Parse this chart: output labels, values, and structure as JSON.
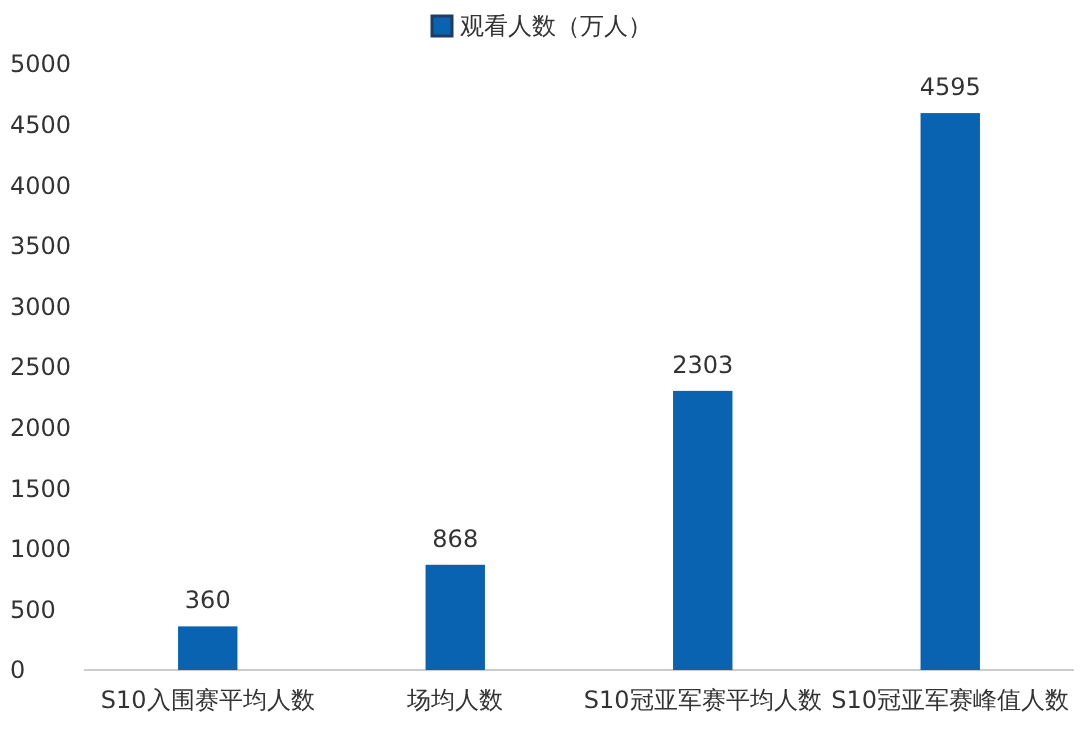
{
  "chart_data": {
    "type": "bar",
    "categories": [
      "S10入围赛平均人数",
      "场均人数",
      "S10冠亚军赛平均人数",
      "S10冠亚军赛峰值人数"
    ],
    "series": [
      {
        "name": "观看人数（万人）",
        "color": "#0a63b0",
        "values": [
          360,
          868,
          2303,
          4595
        ]
      }
    ],
    "ylim": [
      0,
      5000
    ],
    "yticks": [
      0,
      500,
      1000,
      1500,
      2000,
      2500,
      3000,
      3500,
      4000,
      4500,
      5000
    ],
    "grid": false,
    "legend": "top",
    "data_labels": true
  }
}
